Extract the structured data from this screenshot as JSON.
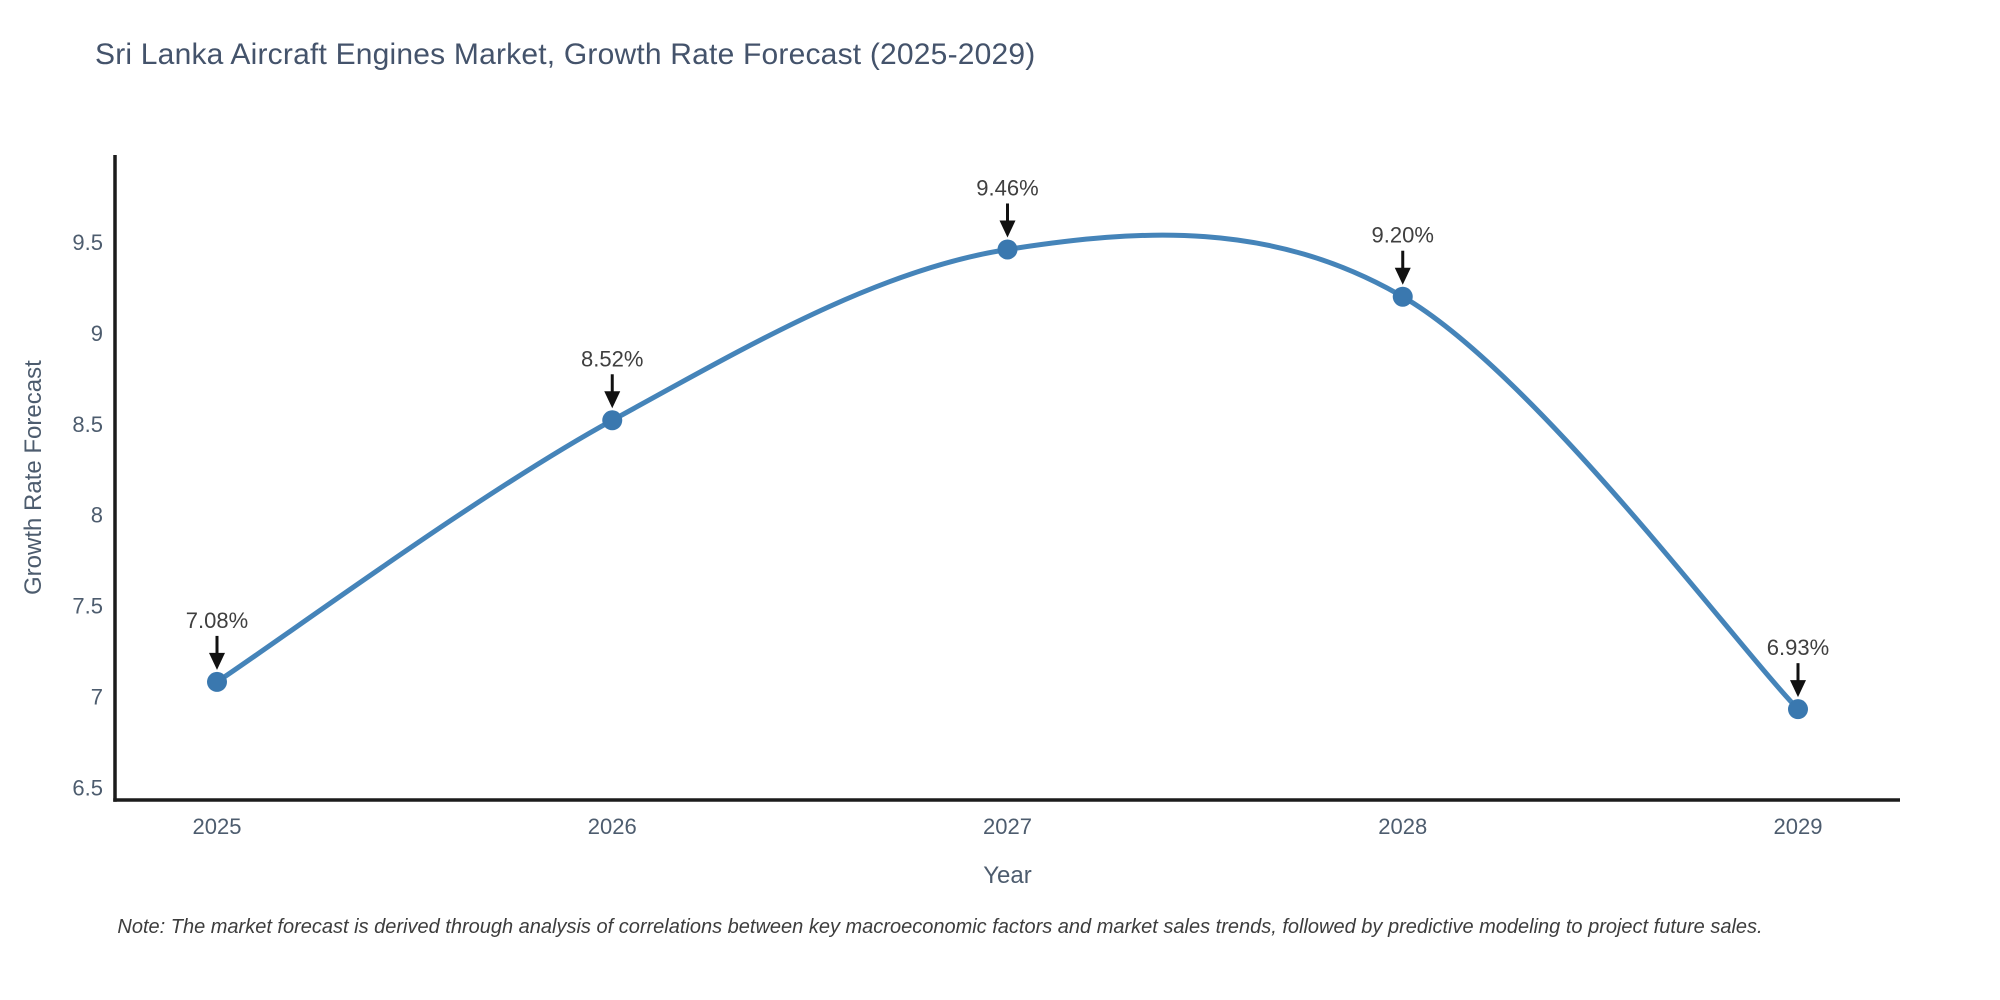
{
  "chart_data": {
    "type": "line",
    "title": "Sri Lanka Aircraft Engines Market, Growth Rate Forecast (2025-2029)",
    "xlabel": "Year",
    "ylabel": "Growth Rate Forecast",
    "categories": [
      "2025",
      "2026",
      "2027",
      "2028",
      "2029"
    ],
    "series": [
      {
        "name": "Growth Rate Forecast",
        "values": [
          7.08,
          8.52,
          9.46,
          9.2,
          6.93
        ],
        "point_labels": [
          "7.08%",
          "8.52%",
          "9.46%",
          "9.20%",
          "6.93%"
        ]
      }
    ],
    "y_ticks": [
      "6.5",
      "7",
      "7.5",
      "8",
      "8.5",
      "9",
      "9.5"
    ],
    "y_tick_values": [
      6.5,
      7,
      7.5,
      8,
      8.5,
      9,
      9.5
    ],
    "ylim": [
      6.43,
      9.98
    ],
    "line_shape": "spline",
    "grid": false,
    "legend_position": "none",
    "annotations_have_arrows": true,
    "colors": {
      "line": "#4584b9",
      "marker": "#3a78af",
      "axis_line": "#1c1c1c",
      "tick_text": "#4d5c6e",
      "title_text": "#44536b",
      "annotation_text": "#3f3f3f",
      "arrow": "#111111",
      "background": "#ffffff"
    },
    "note": "Note: The market forecast is derived through analysis of correlations between key macroeconomic factors and market sales trends, followed by predictive modeling to project future sales."
  }
}
